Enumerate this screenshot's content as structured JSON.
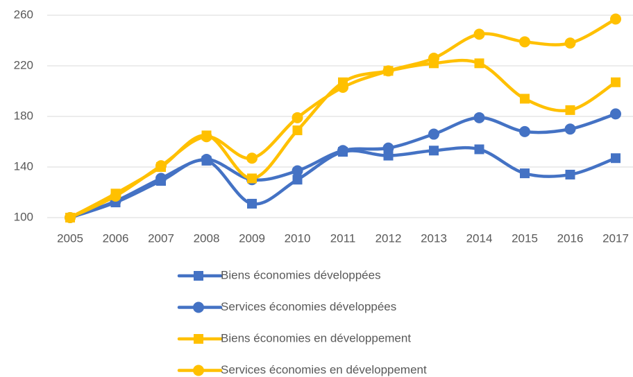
{
  "chart_data": {
    "type": "line",
    "categories": [
      "2005",
      "2006",
      "2007",
      "2008",
      "2009",
      "2010",
      "2011",
      "2012",
      "2013",
      "2014",
      "2015",
      "2016",
      "2017"
    ],
    "series": [
      {
        "name": "Biens économies développées",
        "color": "#4472c4",
        "marker": "square",
        "values": [
          100,
          112,
          129,
          145,
          111,
          130,
          152,
          149,
          153,
          154,
          135,
          134,
          147
        ]
      },
      {
        "name": "Services économies développées",
        "color": "#4472c4",
        "marker": "circle",
        "values": [
          100,
          113,
          131,
          146,
          130,
          137,
          153,
          155,
          166,
          179,
          168,
          170,
          182
        ]
      },
      {
        "name": "Biens économies en développement",
        "color": "#ffc000",
        "marker": "square",
        "values": [
          100,
          119,
          140,
          165,
          131,
          169,
          207,
          216,
          222,
          222,
          194,
          185,
          207
        ]
      },
      {
        "name": "Services économies en développement",
        "color": "#ffc000",
        "marker": "circle",
        "values": [
          100,
          117,
          141,
          164,
          147,
          179,
          203,
          216,
          226,
          245,
          239,
          238,
          257
        ]
      }
    ],
    "ylim": [
      100,
      260
    ],
    "yticks": [
      100,
      140,
      180,
      220,
      260
    ],
    "grid": true,
    "smooth": true,
    "legend": "bottom"
  }
}
